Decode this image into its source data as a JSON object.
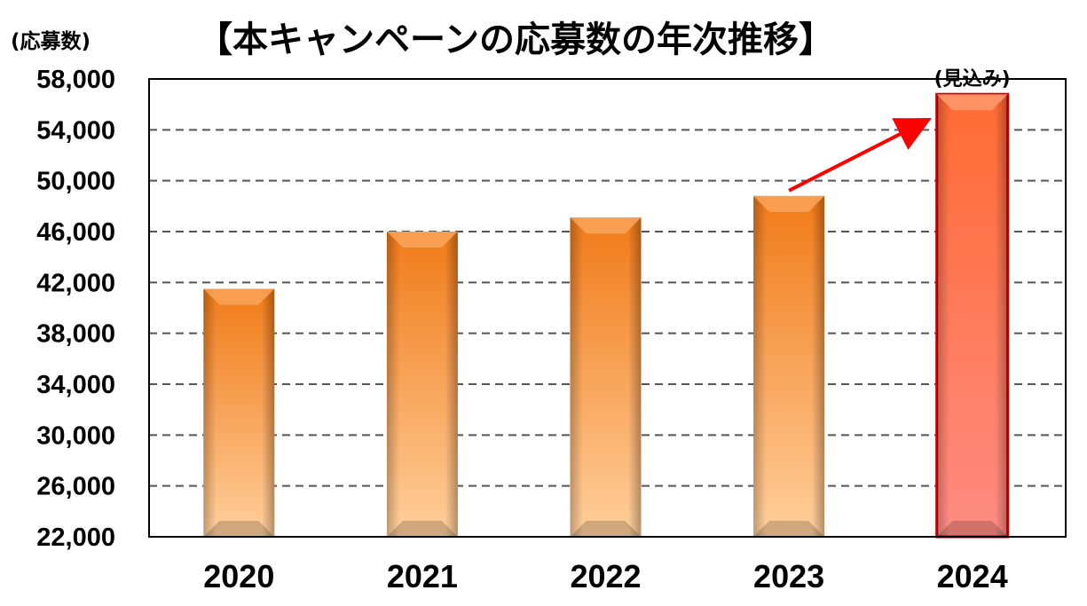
{
  "chart_data": {
    "type": "bar",
    "title": "【本キャンペーンの応募数の年次推移】",
    "ylabel": "(応募数)",
    "categories": [
      "2020",
      "2021",
      "2022",
      "2023",
      "2024"
    ],
    "values": [
      41500,
      46000,
      47100,
      48800,
      56800
    ],
    "ylim": [
      22000,
      58000
    ],
    "yticks": [
      22000,
      26000,
      30000,
      34000,
      38000,
      42000,
      46000,
      50000,
      54000,
      58000
    ],
    "ytick_labels": [
      "22,000",
      "26,000",
      "30,000",
      "34,000",
      "38,000",
      "42,000",
      "46,000",
      "50,000",
      "54,000",
      "58,000"
    ],
    "grid": true,
    "annotations": [
      {
        "text": "(見込み)",
        "category": "2024"
      }
    ],
    "arrow": {
      "from_category": "2023",
      "to_category": "2024",
      "color": "#ff0000"
    },
    "colors": {
      "bar_top": "#f07a18",
      "bar_bottom": "#ffcf9c",
      "highlight_top": "#ff6a32",
      "highlight_bottom": "#ff8c84",
      "highlight_border": "#cc0000",
      "grid": "#555555"
    },
    "highlight_category": "2024"
  }
}
